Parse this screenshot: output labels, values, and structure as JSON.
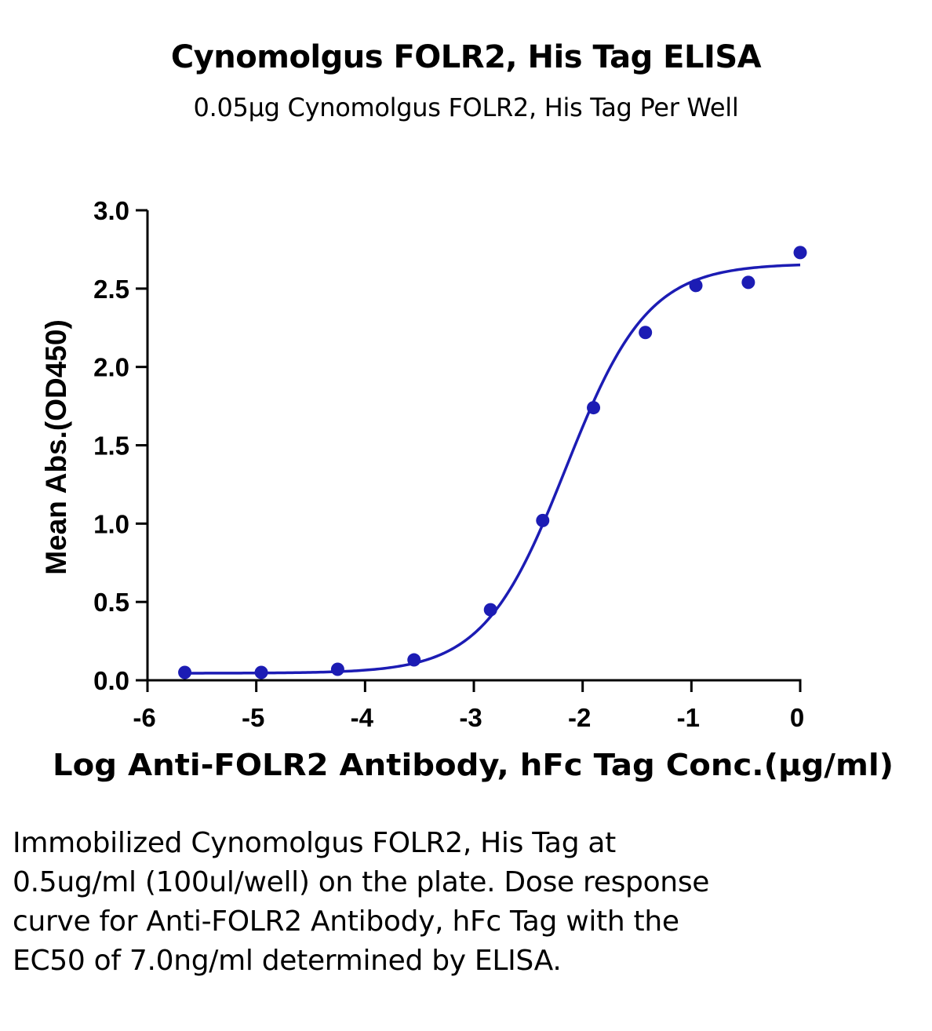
{
  "chart_data": {
    "type": "scatter",
    "title": "Cynomolgus FOLR2, His Tag ELISA",
    "subtitle": "0.05μg Cynomolgus FOLR2, His Tag Per Well",
    "xlabel": "Log Anti-FOLR2 Antibody, hFc Tag Conc.(μg/ml)",
    "ylabel": "Mean Abs.(OD450)",
    "xlim": [
      -6,
      0
    ],
    "ylim": [
      0,
      3
    ],
    "x_ticks": [
      -6,
      -5,
      -4,
      -3,
      -2,
      -1,
      0
    ],
    "x_tick_labels": [
      "-6",
      "-5",
      "-4",
      "-3",
      "-2",
      "-1",
      "0"
    ],
    "y_ticks": [
      0,
      0.5,
      1,
      1.5,
      2,
      2.5,
      3
    ],
    "y_tick_labels": [
      "0.0",
      "0.5",
      "1.0",
      "1.5",
      "2.0",
      "2.5",
      "3.0"
    ],
    "grid": false,
    "color": "#1c1cb4",
    "series": [
      {
        "x": [
          -5.657,
          -4.954,
          -4.252,
          -3.55,
          -2.847,
          -2.367,
          -1.9,
          -1.423,
          -0.959,
          -0.477,
          0
        ],
        "y": [
          0.05,
          0.05,
          0.07,
          0.13,
          0.45,
          1.02,
          1.74,
          2.22,
          2.52,
          2.54,
          2.73
        ]
      }
    ],
    "fit_curve": {
      "model": "4PL",
      "bottom": 0.045,
      "top": 2.66,
      "log_ec50": -2.155,
      "hill_slope": 1.15,
      "x_range": [
        -5.657,
        0
      ]
    }
  },
  "caption": "Immobilized Cynomolgus FOLR2, His Tag at 0.5ug/ml (100ul/well) on the plate. Dose response curve for Anti-FOLR2 Antibody, hFc Tag with the EC50 of 7.0ng/ml determined by ELISA."
}
